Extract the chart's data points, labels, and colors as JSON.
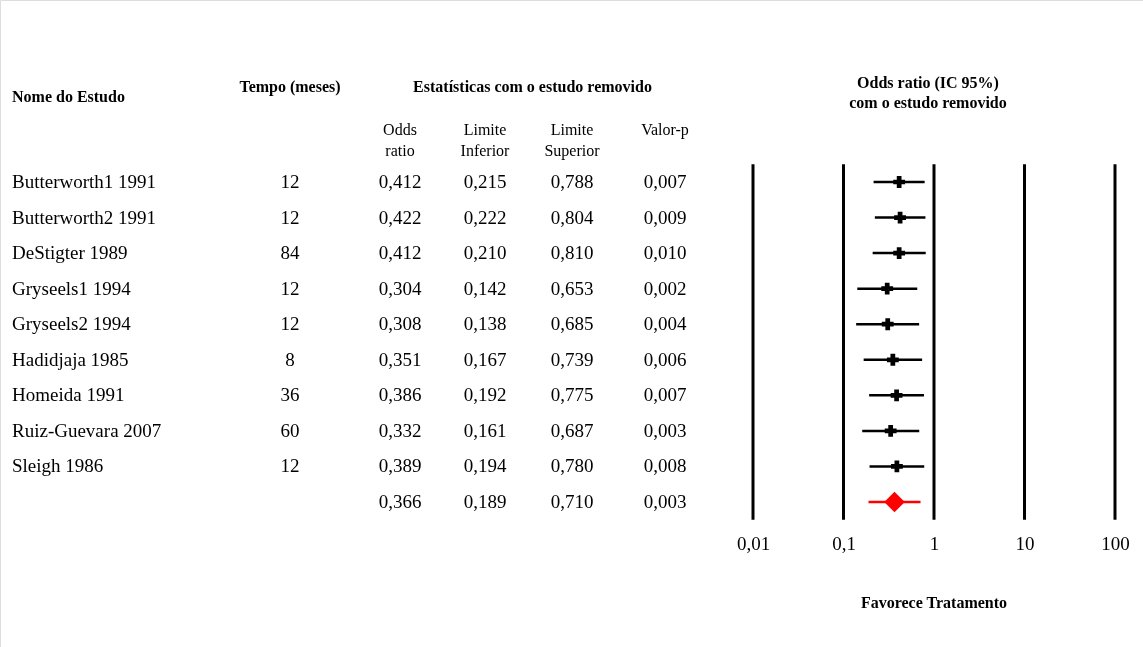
{
  "chart_data": [
    {
      "type": "other",
      "title": "Estatísticas com o estudo removido",
      "ylabel": "Nome do Estudo",
      "categories": [
        "Tempo (meses)",
        "Odds ratio",
        "Limite Inferior",
        "Limite Superior",
        "Valor-p"
      ],
      "cell_labels": [
        [
          "12",
          "0,412",
          "0,215",
          "0,788",
          "0,007"
        ],
        [
          "12",
          "0,422",
          "0,222",
          "0,804",
          "0,009"
        ],
        [
          "84",
          "0,412",
          "0,210",
          "0,810",
          "0,010"
        ],
        [
          "12",
          "0,304",
          "0,142",
          "0,653",
          "0,002"
        ],
        [
          "12",
          "0,308",
          "0,138",
          "0,685",
          "0,004"
        ],
        [
          "8",
          "0,351",
          "0,167",
          "0,739",
          "0,006"
        ],
        [
          "36",
          "0,386",
          "0,192",
          "0,775",
          "0,007"
        ],
        [
          "60",
          "0,332",
          "0,161",
          "0,687",
          "0,003"
        ],
        [
          "12",
          "0,389",
          "0,194",
          "0,780",
          "0,008"
        ],
        [
          null,
          "0,366",
          "0,189",
          "0,710",
          "0,003"
        ]
      ]
    },
    {
      "type": "scatter",
      "title": "Odds ratio (IC 95%)",
      "subtitle": "com o estudo removido",
      "xlabel": "Favorece Tratamento",
      "orientation": "horizontal",
      "categories": [
        "Butterworth1 1991",
        "Butterworth2 1991",
        "DeStigter 1989",
        "Gryseels1 1994",
        "Gryseels2 1994",
        "Hadidjaja 1985",
        "Homeida 1991",
        "Ruiz-Guevara 2007",
        "Sleigh 1986",
        null
      ],
      "tick_labels": "x",
      "log": "x",
      "xlim": [
        0.01,
        100
      ],
      "xticks": [
        {
          "value": 0.01,
          "label": "0,01"
        },
        {
          "value": 0.1,
          "label": "0,1"
        },
        1,
        10,
        100
      ],
      "grid": "x",
      "series": [
        {
          "color": "#000000",
          "marker": "cross",
          "values": [
            0.412,
            0.422,
            0.412,
            0.304,
            0.308,
            0.351,
            0.386,
            0.332,
            0.389,
            null
          ],
          "errors": [
            [
              0.215,
              0.788
            ],
            [
              0.222,
              0.804
            ],
            [
              0.21,
              0.81
            ],
            [
              0.142,
              0.653
            ],
            [
              0.138,
              0.685
            ],
            [
              0.167,
              0.739
            ],
            [
              0.192,
              0.775
            ],
            [
              0.161,
              0.687
            ],
            [
              0.194,
              0.78
            ],
            null
          ]
        },
        {
          "color": "#ff0000",
          "marker": "diamond",
          "values": [
            null,
            null,
            null,
            null,
            null,
            null,
            null,
            null,
            null,
            0.366
          ],
          "errors": [
            null,
            null,
            null,
            null,
            null,
            null,
            null,
            null,
            null,
            [
              0.189,
              0.71
            ]
          ]
        }
      ]
    }
  ]
}
